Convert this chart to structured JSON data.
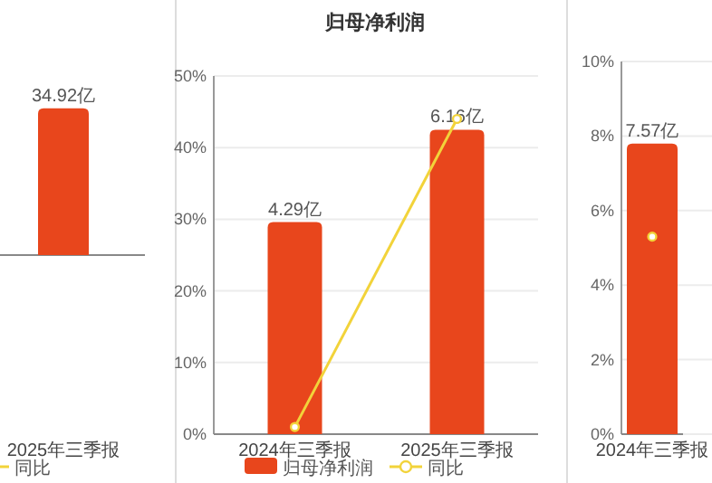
{
  "chart_data": [
    {
      "type": "bar",
      "categories": [
        "2025年三季报"
      ],
      "legend": "bottom",
      "marker": "circle",
      "series": [
        {
          "type": "bar",
          "axis": "y2",
          "color": "#e8461c",
          "values": [
            34.92
          ],
          "value_labels": [
            "34.92亿"
          ]
        },
        {
          "type": "line",
          "name": "同比",
          "color": "#f2d33a",
          "values": [
            null
          ]
        }
      ]
    },
    {
      "type": "bar",
      "title": "归母净利润",
      "categories": [
        "2024年三季报",
        "2025年三季报"
      ],
      "legend": "bottom",
      "marker": "circle",
      "grid": "y",
      "ylim": [
        0,
        50
      ],
      "yticks": [
        {
          "value": 0,
          "label": "0%"
        },
        {
          "value": 10,
          "label": "10%"
        },
        {
          "value": 20,
          "label": "20%"
        },
        {
          "value": 30,
          "label": "30%"
        },
        {
          "value": 40,
          "label": "40%"
        },
        {
          "value": 50,
          "label": "50%"
        }
      ],
      "series": [
        {
          "type": "bar",
          "axis": "y2",
          "name": "归母净利润",
          "color": "#e8461c",
          "values": [
            4.29,
            6.16
          ],
          "value_labels": [
            "4.29亿",
            "6.16亿"
          ]
        },
        {
          "type": "line",
          "name": "同比",
          "color": "#f2d33a",
          "values": [
            1,
            44
          ]
        }
      ]
    },
    {
      "type": "bar",
      "categories": [
        "2024年三季报"
      ],
      "marker": "circle",
      "grid": "y",
      "ylim": [
        0,
        10
      ],
      "yticks": [
        {
          "value": 0,
          "label": "0%"
        },
        {
          "value": 2,
          "label": "2%"
        },
        {
          "value": 4,
          "label": "4%"
        },
        {
          "value": 6,
          "label": "6%"
        },
        {
          "value": 8,
          "label": "8%"
        },
        {
          "value": 10,
          "label": "10%"
        }
      ],
      "series": [
        {
          "type": "bar",
          "axis": "y2",
          "color": "#e8461c",
          "values": [
            7.57
          ],
          "value_labels": [
            "7.57亿"
          ]
        },
        {
          "type": "line",
          "color": "#f2d33a",
          "values": [
            5.3
          ]
        }
      ]
    }
  ]
}
